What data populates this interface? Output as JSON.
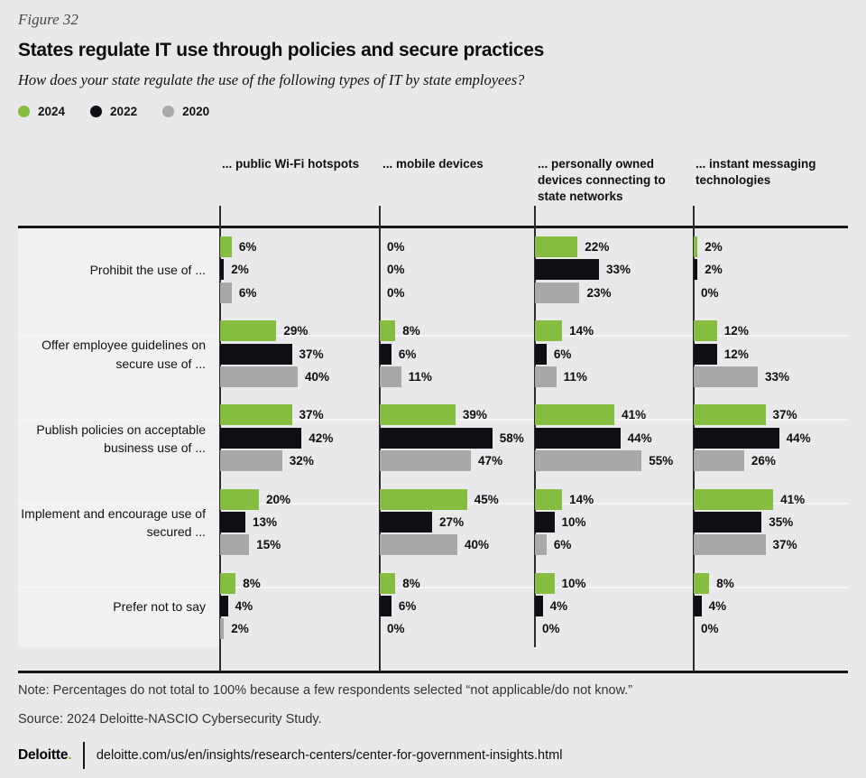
{
  "figure_label": "Figure 32",
  "title": "States regulate IT use through policies and secure practices",
  "subtitle": "How does your state regulate the use of the following types of IT by state employees?",
  "legend": [
    {
      "label": "2024",
      "color": "#84bd3f"
    },
    {
      "label": "2022",
      "color": "#0e0e13"
    },
    {
      "label": "2020",
      "color": "#a8a8a8"
    }
  ],
  "chart_data": {
    "type": "bar",
    "orientation": "horizontal",
    "value_unit": "%",
    "xlim": [
      0,
      100
    ],
    "grid": "column-axes",
    "legend_position": "top-left",
    "series": [
      "2024",
      "2022",
      "2020"
    ],
    "series_colors": [
      "#84bd3f",
      "#0e0e13",
      "#a8a8a8"
    ],
    "row_labels": [
      "Prohibit the use of ...",
      "Offer employee guidelines on secure use of ...",
      "Publish policies on acceptable business use of ...",
      "Implement and encourage use of secured ...",
      "Prefer not to say"
    ],
    "columns": [
      {
        "label": "... public Wi-Fi hotspots",
        "values": [
          [
            6,
            2,
            6
          ],
          [
            29,
            37,
            40
          ],
          [
            37,
            42,
            32
          ],
          [
            20,
            13,
            15
          ],
          [
            8,
            4,
            2
          ]
        ]
      },
      {
        "label": "... mobile devices",
        "values": [
          [
            0,
            0,
            0
          ],
          [
            8,
            6,
            11
          ],
          [
            39,
            58,
            47
          ],
          [
            45,
            27,
            40
          ],
          [
            8,
            6,
            0
          ]
        ]
      },
      {
        "label": "... personally owned devices connecting to state networks",
        "values": [
          [
            22,
            33,
            23
          ],
          [
            14,
            6,
            11
          ],
          [
            41,
            44,
            55
          ],
          [
            14,
            10,
            6
          ],
          [
            10,
            4,
            0
          ]
        ]
      },
      {
        "label": "... instant messaging technologies",
        "values": [
          [
            2,
            2,
            0
          ],
          [
            12,
            12,
            33
          ],
          [
            37,
            44,
            26
          ],
          [
            41,
            35,
            37
          ],
          [
            8,
            4,
            0
          ]
        ]
      }
    ]
  },
  "footer": {
    "note": "Note: Percentages do not total to 100% because a few respondents selected “not applicable/do not know.”",
    "source": "Source: 2024 Deloitte-NASCIO Cybersecurity Study.",
    "logo": "Deloitte",
    "logo_dot": ".",
    "url": "deloitte.com/us/en/insights/research-centers/center-for-government-insights.html"
  }
}
